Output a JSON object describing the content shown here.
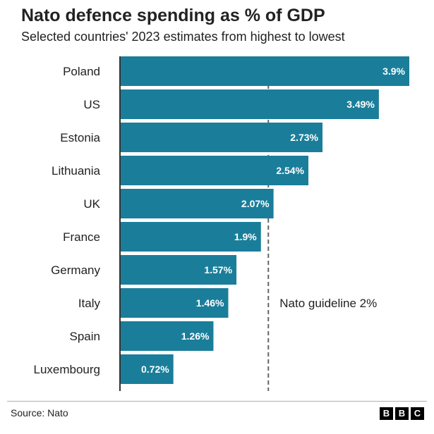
{
  "chart_data": {
    "type": "bar",
    "orientation": "horizontal",
    "title": "Nato defence spending as % of GDP",
    "subtitle": "Selected countries' 2023 estimates from highest to lowest",
    "categories": [
      "Poland",
      "US",
      "Estonia",
      "Lithuania",
      "UK",
      "France",
      "Germany",
      "Italy",
      "Spain",
      "Luxembourg"
    ],
    "values": [
      3.9,
      3.49,
      2.73,
      2.54,
      2.07,
      1.9,
      1.57,
      1.46,
      1.26,
      0.72
    ],
    "value_labels": [
      "3.9%",
      "3.49%",
      "2.73%",
      "2.54%",
      "2.07%",
      "1.9%",
      "1.57%",
      "1.46%",
      "1.26%",
      "0.72%"
    ],
    "xlim": [
      0,
      3.9
    ],
    "grid": false,
    "reference_line": {
      "value": 2,
      "label": "Nato guideline 2%"
    },
    "bar_color": "#1a7e9a"
  },
  "footer": {
    "source": "Source: Nato",
    "brand_letters": [
      "B",
      "B",
      "C"
    ]
  }
}
